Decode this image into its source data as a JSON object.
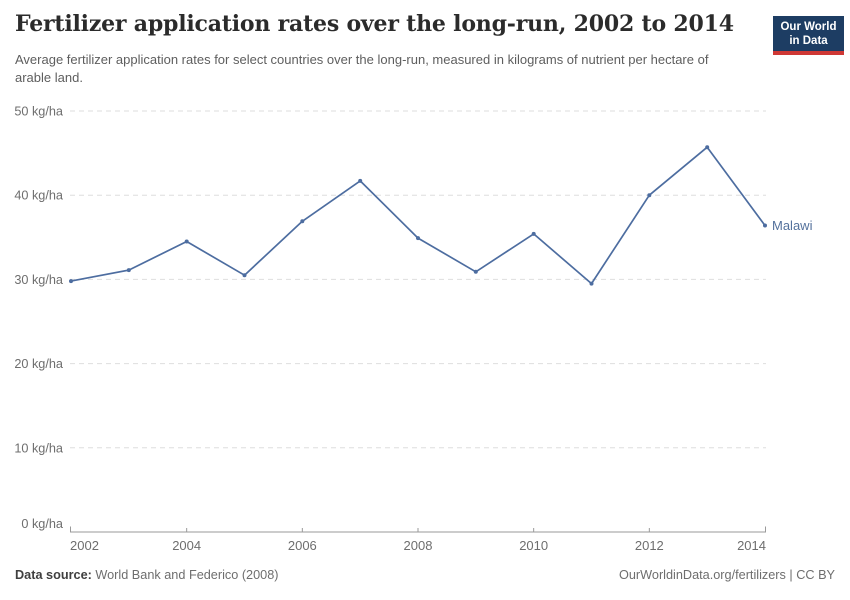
{
  "header": {
    "title": "Fertilizer application rates over the long-run, 2002 to 2014",
    "subtitle": "Average fertilizer application rates for select countries over the long-run, measured in kilograms of nutrient per hectare of arable land.",
    "logo": {
      "line1": "Our World",
      "line2": "in Data"
    }
  },
  "chart_data": {
    "type": "line",
    "title": "Fertilizer application rates over the long-run, 2002 to 2014",
    "unit": " kg/ha",
    "x": [
      2002,
      2003,
      2004,
      2005,
      2006,
      2007,
      2008,
      2009,
      2010,
      2011,
      2012,
      2013,
      2014
    ],
    "series": [
      {
        "name": "Malawi",
        "values": [
          29.8,
          31.1,
          34.5,
          30.5,
          36.9,
          41.7,
          34.9,
          30.9,
          35.4,
          29.5,
          40.0,
          45.7,
          36.4
        ]
      }
    ],
    "ylim": [
      0,
      50
    ],
    "yticks": [
      0,
      10,
      20,
      30,
      40,
      50
    ],
    "ytick_labels": [
      "0 kg/ha",
      "10 kg/ha",
      "20 kg/ha",
      "30 kg/ha",
      "40 kg/ha",
      "50 kg/ha"
    ],
    "xticks": [
      2002,
      2004,
      2006,
      2008,
      2010,
      2012,
      2014
    ],
    "grid": "horizontal-dashed",
    "legend": "end-of-line-label"
  },
  "colors": {
    "line": "#4d6da0",
    "series_label": "#54719c",
    "grid": "#dedede",
    "axis": "#9a9a9a",
    "axis_text": "#6e6e6e",
    "logo_navy": "#1d3d63",
    "logo_red": "#cf3835"
  },
  "footer": {
    "source_label": "Data source:",
    "source_value": " World Bank and Federico (2008)",
    "attribution": "OurWorldinData.org/fertilizers | CC BY"
  }
}
